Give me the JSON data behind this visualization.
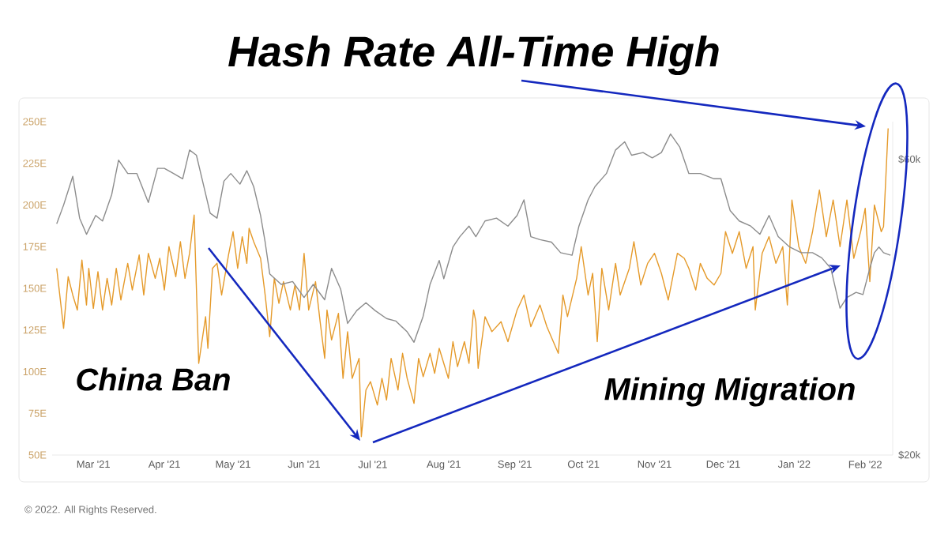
{
  "chart_data": {
    "type": "line",
    "annotations": [
      "Hash Rate All-Time High",
      "China Ban",
      "Mining Migration",
      "© 2022. All Rights Reserved."
    ],
    "xlim": [
      "2021-02-11",
      "2022-02-13"
    ],
    "xticks": [
      {
        "value": "2021-03-01",
        "label": "Mar '21"
      },
      {
        "value": "2021-04-01",
        "label": "Apr '21"
      },
      {
        "value": "2021-05-01",
        "label": "May '21"
      },
      {
        "value": "2021-06-01",
        "label": "Jun '21"
      },
      {
        "value": "2021-07-01",
        "label": "Jul '21"
      },
      {
        "value": "2021-08-01",
        "label": "Aug '21"
      },
      {
        "value": "2021-09-01",
        "label": "Sep '21"
      },
      {
        "value": "2021-10-01",
        "label": "Oct '21"
      },
      {
        "value": "2021-11-01",
        "label": "Nov '21"
      },
      {
        "value": "2021-12-01",
        "label": "Dec '21"
      },
      {
        "value": "2022-01-01",
        "label": "Jan '22"
      },
      {
        "value": "2022-02-01",
        "label": "Feb '22"
      }
    ],
    "ylim": [
      50,
      250
    ],
    "yticks": [
      {
        "value": 50,
        "label": "50E"
      },
      {
        "value": 75,
        "label": "75E"
      },
      {
        "value": 100,
        "label": "100E"
      },
      {
        "value": 125,
        "label": "125E"
      },
      {
        "value": 150,
        "label": "150E"
      },
      {
        "value": 175,
        "label": "175E"
      },
      {
        "value": 200,
        "label": "200E"
      },
      {
        "value": 225,
        "label": "225E"
      },
      {
        "value": 250,
        "label": "250E"
      }
    ],
    "y2lim": [
      20000,
      69000
    ],
    "y2ticks": [
      {
        "value": 20000,
        "label": "$20k"
      },
      {
        "value": 60000,
        "label": "$60k"
      }
    ],
    "log": "y2",
    "series": [
      {
        "color": "#8c8c8c",
        "axis": "y2",
        "x": [
          "2021-02-13",
          "2021-02-16",
          "2021-02-20",
          "2021-02-23",
          "2021-02-26",
          "2021-03-02",
          "2021-03-05",
          "2021-03-09",
          "2021-03-12",
          "2021-03-16",
          "2021-03-20",
          "2021-03-25",
          "2021-03-29",
          "2021-04-01",
          "2021-04-05",
          "2021-04-09",
          "2021-04-12",
          "2021-04-15",
          "2021-04-18",
          "2021-04-21",
          "2021-04-24",
          "2021-04-27",
          "2021-04-30",
          "2021-05-04",
          "2021-05-07",
          "2021-05-10",
          "2021-05-13",
          "2021-05-15",
          "2021-05-17",
          "2021-05-22",
          "2021-05-27",
          "2021-06-01",
          "2021-06-05",
          "2021-06-10",
          "2021-06-13",
          "2021-06-17",
          "2021-06-20",
          "2021-06-24",
          "2021-06-28",
          "2021-07-02",
          "2021-07-07",
          "2021-07-11",
          "2021-07-16",
          "2021-07-19",
          "2021-07-23",
          "2021-07-26",
          "2021-07-30",
          "2021-08-01",
          "2021-08-05",
          "2021-08-08",
          "2021-08-12",
          "2021-08-15",
          "2021-08-19",
          "2021-08-24",
          "2021-08-29",
          "2021-09-02",
          "2021-09-05",
          "2021-09-08",
          "2021-09-12",
          "2021-09-17",
          "2021-09-21",
          "2021-09-26",
          "2021-09-29",
          "2021-10-03",
          "2021-10-06",
          "2021-10-11",
          "2021-10-15",
          "2021-10-19",
          "2021-10-22",
          "2021-10-27",
          "2021-10-31",
          "2021-11-04",
          "2021-11-08",
          "2021-11-12",
          "2021-11-16",
          "2021-11-21",
          "2021-11-27",
          "2021-11-30",
          "2021-12-04",
          "2021-12-08",
          "2021-12-13",
          "2021-12-17",
          "2021-12-21",
          "2021-12-25",
          "2021-12-30",
          "2022-01-04",
          "2022-01-09",
          "2022-01-13",
          "2022-01-17",
          "2022-01-21",
          "2022-01-24",
          "2022-01-28",
          "2022-01-31",
          "2022-02-03",
          "2022-02-05",
          "2022-02-07",
          "2022-02-09",
          "2022-02-12"
        ],
        "values": [
          47200,
          50600,
          56300,
          48200,
          45400,
          48700,
          47700,
          52600,
          59800,
          56900,
          56900,
          51100,
          58000,
          58000,
          56900,
          55800,
          62100,
          60900,
          54700,
          49100,
          48200,
          55300,
          56900,
          54700,
          57500,
          54200,
          48700,
          44100,
          39200,
          37700,
          38100,
          35900,
          37700,
          35600,
          40000,
          37000,
          32600,
          34200,
          35200,
          34200,
          33200,
          32900,
          31600,
          30400,
          33500,
          37700,
          41200,
          38500,
          43300,
          45000,
          46800,
          45000,
          47700,
          48200,
          46800,
          48700,
          51600,
          45000,
          44500,
          44100,
          42400,
          42000,
          46800,
          51600,
          54200,
          56900,
          62100,
          64000,
          60900,
          61500,
          60300,
          61500,
          65900,
          62800,
          56900,
          56900,
          55800,
          55800,
          49600,
          47700,
          46800,
          45400,
          48700,
          45000,
          43300,
          42400,
          42400,
          41600,
          40000,
          34500,
          35900,
          36600,
          36300,
          40000,
          42400,
          43300,
          42400,
          42000
        ]
      },
      {
        "color": "#e59a2a",
        "x": [
          "2021-02-13",
          "2021-02-16",
          "2021-02-18",
          "2021-02-20",
          "2021-02-22",
          "2021-02-24",
          "2021-02-26",
          "2021-02-27",
          "2021-03-01",
          "2021-03-03",
          "2021-03-05",
          "2021-03-07",
          "2021-03-09",
          "2021-03-11",
          "2021-03-13",
          "2021-03-16",
          "2021-03-18",
          "2021-03-21",
          "2021-03-23",
          "2021-03-25",
          "2021-03-28",
          "2021-03-30",
          "2021-04-01",
          "2021-04-03",
          "2021-04-06",
          "2021-04-08",
          "2021-04-10",
          "2021-04-12",
          "2021-04-14",
          "2021-04-16",
          "2021-04-19",
          "2021-04-20",
          "2021-04-22",
          "2021-04-24",
          "2021-04-26",
          "2021-04-29",
          "2021-05-01",
          "2021-05-03",
          "2021-05-05",
          "2021-05-07",
          "2021-05-08",
          "2021-05-10",
          "2021-05-13",
          "2021-05-15",
          "2021-05-17",
          "2021-05-19",
          "2021-05-21",
          "2021-05-23",
          "2021-05-26",
          "2021-05-28",
          "2021-05-30",
          "2021-06-01",
          "2021-06-03",
          "2021-06-06",
          "2021-06-08",
          "2021-06-10",
          "2021-06-11",
          "2021-06-13",
          "2021-06-16",
          "2021-06-18",
          "2021-06-20",
          "2021-06-22",
          "2021-06-25",
          "2021-06-26",
          "2021-06-28",
          "2021-06-30",
          "2021-07-03",
          "2021-07-05",
          "2021-07-07",
          "2021-07-09",
          "2021-07-12",
          "2021-07-14",
          "2021-07-16",
          "2021-07-19",
          "2021-07-21",
          "2021-07-23",
          "2021-07-26",
          "2021-07-28",
          "2021-07-30",
          "2021-08-01",
          "2021-08-03",
          "2021-08-05",
          "2021-08-07",
          "2021-08-10",
          "2021-08-12",
          "2021-08-14",
          "2021-08-15",
          "2021-08-16",
          "2021-08-19",
          "2021-08-22",
          "2021-08-26",
          "2021-08-29",
          "2021-09-02",
          "2021-09-05",
          "2021-09-08",
          "2021-09-12",
          "2021-09-15",
          "2021-09-20",
          "2021-09-22",
          "2021-09-24",
          "2021-09-28",
          "2021-09-30",
          "2021-10-03",
          "2021-10-05",
          "2021-10-07",
          "2021-10-09",
          "2021-10-12",
          "2021-10-15",
          "2021-10-17",
          "2021-10-21",
          "2021-10-23",
          "2021-10-26",
          "2021-10-29",
          "2021-11-01",
          "2021-11-04",
          "2021-11-07",
          "2021-11-11",
          "2021-11-14",
          "2021-11-16",
          "2021-11-19",
          "2021-11-21",
          "2021-11-24",
          "2021-11-27",
          "2021-11-30",
          "2021-12-02",
          "2021-12-05",
          "2021-12-08",
          "2021-12-11",
          "2021-12-14",
          "2021-12-15",
          "2021-12-18",
          "2021-12-21",
          "2021-12-24",
          "2021-12-27",
          "2021-12-29",
          "2021-12-31",
          "2022-01-03",
          "2022-01-06",
          "2022-01-09",
          "2022-01-12",
          "2022-01-15",
          "2022-01-18",
          "2022-01-21",
          "2022-01-24",
          "2022-01-27",
          "2022-01-30",
          "2022-02-01",
          "2022-02-03",
          "2022-02-05",
          "2022-02-08",
          "2022-02-09",
          "2022-02-11"
        ],
        "values": [
          162,
          126,
          157,
          146,
          137,
          167,
          140,
          162,
          138,
          160,
          137,
          156,
          140,
          162,
          143,
          165,
          149,
          170,
          146,
          171,
          156,
          168,
          149,
          175,
          157,
          178,
          156,
          171,
          194,
          105,
          133,
          114,
          162,
          165,
          146,
          170,
          184,
          162,
          181,
          165,
          186,
          178,
          168,
          146,
          121,
          156,
          141,
          154,
          137,
          152,
          137,
          171,
          137,
          154,
          130,
          108,
          137,
          119,
          135,
          96,
          124,
          96,
          108,
          61,
          89,
          94,
          80,
          96,
          83,
          108,
          89,
          111,
          96,
          81,
          108,
          97,
          111,
          99,
          114,
          105,
          96,
          118,
          103,
          118,
          105,
          137,
          130,
          102,
          133,
          124,
          130,
          118,
          137,
          146,
          127,
          140,
          127,
          111,
          146,
          133,
          156,
          175,
          146,
          159,
          118,
          162,
          137,
          165,
          146,
          162,
          178,
          152,
          165,
          171,
          159,
          143,
          171,
          168,
          162,
          149,
          165,
          156,
          152,
          159,
          184,
          171,
          184,
          162,
          175,
          137,
          171,
          181,
          165,
          175,
          140,
          203,
          175,
          165,
          184,
          209,
          181,
          203,
          175,
          203,
          168,
          184,
          198,
          154,
          200,
          184,
          187,
          246
        ]
      }
    ]
  }
}
